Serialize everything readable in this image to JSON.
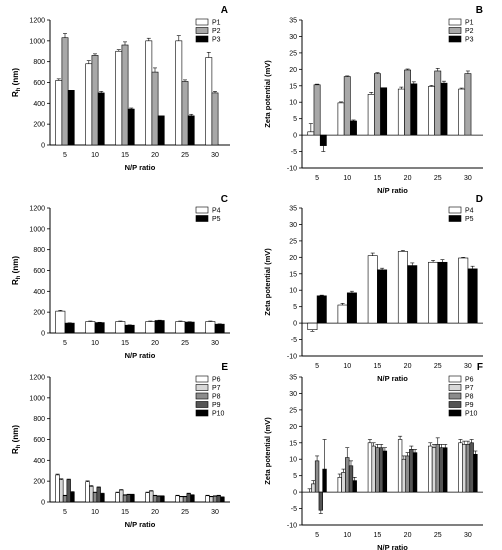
{
  "chart_data": [
    {
      "type": "bar",
      "panel_label": "A",
      "categories": [
        "5",
        "10",
        "15",
        "20",
        "25",
        "30"
      ],
      "series": [
        {
          "name": "P1",
          "values": [
            620,
            780,
            900,
            1000,
            1000,
            840
          ],
          "errors": [
            15,
            30,
            15,
            25,
            50,
            50
          ]
        },
        {
          "name": "P2",
          "values": [
            1030,
            860,
            960,
            700,
            610,
            500
          ],
          "errors": [
            40,
            15,
            30,
            40,
            15,
            15
          ]
        },
        {
          "name": "P3",
          "values": [
            525,
            500,
            345,
            280,
            280,
            0
          ],
          "errors": [
            0,
            15,
            10,
            0,
            15,
            0
          ]
        }
      ],
      "xlabel": "N/P ratio",
      "ylabel": "Rh (nm)",
      "ylim": [
        0,
        1200
      ],
      "yticks": [
        0,
        200,
        400,
        600,
        800,
        1000,
        1200
      ]
    },
    {
      "type": "bar",
      "panel_label": "B",
      "categories": [
        "5",
        "10",
        "15",
        "20",
        "25",
        "30"
      ],
      "series": [
        {
          "name": "P1",
          "values": [
            1,
            9.8,
            12.4,
            14,
            14.8,
            14
          ],
          "errors": [
            2.5,
            0.3,
            0.6,
            0.6,
            0.3,
            0.3
          ]
        },
        {
          "name": "P2",
          "values": [
            15.3,
            17.8,
            18.7,
            19.8,
            19.5,
            18.7
          ],
          "errors": [
            0.2,
            0.2,
            0.3,
            0.3,
            0.8,
            0.8
          ]
        },
        {
          "name": "P3",
          "values": [
            -3.2,
            4.3,
            14.4,
            15.6,
            15.8,
            0
          ],
          "errors": [
            1.8,
            0.3,
            0,
            0.6,
            0.6,
            0
          ]
        }
      ],
      "xlabel": "N/P ratio",
      "ylabel": "Zeta potential (mV)",
      "ylim": [
        -10,
        35
      ],
      "yticks": [
        -10,
        -5,
        0,
        5,
        10,
        15,
        20,
        25,
        30,
        35
      ]
    },
    {
      "type": "bar",
      "panel_label": "C",
      "categories": [
        "5",
        "10",
        "15",
        "20",
        "25",
        "30"
      ],
      "series": [
        {
          "name": "P4",
          "values": [
            210,
            110,
            110,
            110,
            110,
            110
          ],
          "errors": [
            8,
            5,
            5,
            5,
            5,
            5
          ]
        },
        {
          "name": "P5",
          "values": [
            95,
            100,
            75,
            120,
            105,
            85
          ],
          "errors": [
            3,
            3,
            3,
            3,
            3,
            3
          ]
        }
      ],
      "xlabel": "N/P ratio",
      "ylabel": "Rh (nm)",
      "ylim": [
        0,
        1200
      ],
      "yticks": [
        0,
        200,
        400,
        600,
        800,
        1000,
        1200
      ]
    },
    {
      "type": "bar",
      "panel_label": "D",
      "categories": [
        "5",
        "10",
        "15",
        "20",
        "25",
        "30"
      ],
      "series": [
        {
          "name": "P4",
          "values": [
            -2,
            5.5,
            20.5,
            21.8,
            18.5,
            19.8
          ],
          "errors": [
            0.5,
            0.5,
            0.8,
            0.3,
            0.6,
            0.2
          ]
        },
        {
          "name": "P5",
          "values": [
            8.3,
            9.2,
            16.2,
            17.5,
            18.5,
            16.5
          ],
          "errors": [
            0.2,
            0.5,
            0.5,
            0.8,
            0.8,
            0.8
          ]
        }
      ],
      "xlabel": "N/P ratio",
      "ylabel": "Zeta potential (mV)",
      "ylim": [
        -10,
        35
      ],
      "yticks": [
        -10,
        -5,
        0,
        5,
        10,
        15,
        20,
        25,
        30,
        35
      ]
    },
    {
      "type": "bar",
      "panel_label": "E",
      "categories": [
        "5",
        "10",
        "15",
        "20",
        "25",
        "30"
      ],
      "series": [
        {
          "name": "P6",
          "values": [
            260,
            195,
            90,
            90,
            60,
            60
          ],
          "errors": [
            8,
            8,
            5,
            5,
            5,
            5
          ]
        },
        {
          "name": "P7",
          "values": [
            215,
            150,
            115,
            105,
            50,
            50
          ],
          "errors": [
            8,
            8,
            5,
            5,
            5,
            5
          ]
        },
        {
          "name": "P8",
          "values": [
            60,
            90,
            65,
            60,
            50,
            55
          ],
          "errors": [
            5,
            5,
            5,
            5,
            5,
            5
          ]
        },
        {
          "name": "P9",
          "values": [
            215,
            140,
            70,
            55,
            80,
            60
          ],
          "errors": [
            5,
            5,
            5,
            5,
            5,
            5
          ]
        },
        {
          "name": "P10",
          "values": [
            95,
            80,
            70,
            55,
            65,
            45
          ],
          "errors": [
            5,
            5,
            5,
            5,
            5,
            5
          ]
        }
      ],
      "xlabel": "N/P ratio",
      "ylabel": "Rh (nm)",
      "ylim": [
        0,
        1200
      ],
      "yticks": [
        0,
        200,
        400,
        600,
        800,
        1000,
        1200
      ]
    },
    {
      "type": "bar",
      "panel_label": "F",
      "categories": [
        "5",
        "10",
        "15",
        "20",
        "25",
        "30"
      ],
      "series": [
        {
          "name": "P6",
          "values": [
            0,
            4.5,
            15,
            16,
            14,
            15
          ],
          "errors": [
            1,
            1,
            1,
            1,
            1,
            1
          ]
        },
        {
          "name": "P7",
          "values": [
            2.5,
            6,
            14,
            10,
            13.5,
            14.5
          ],
          "errors": [
            1,
            1,
            1,
            1,
            1,
            1
          ]
        },
        {
          "name": "P8",
          "values": [
            9.5,
            10.5,
            13.5,
            11,
            14.5,
            14.5
          ],
          "errors": [
            1.5,
            3,
            1,
            1,
            2,
            1
          ]
        },
        {
          "name": "P9",
          "values": [
            -5.5,
            8,
            13.5,
            13,
            13.5,
            15
          ],
          "errors": [
            1,
            1.5,
            1,
            1,
            1,
            1
          ]
        },
        {
          "name": "P10",
          "values": [
            7,
            3.5,
            12.5,
            12,
            13.5,
            11.5
          ],
          "errors": [
            9,
            1,
            1,
            1,
            1,
            1
          ]
        }
      ],
      "xlabel": "N/P ratio",
      "ylabel": "Zeta potential (mV)",
      "ylim": [
        -10,
        35
      ],
      "yticks": [
        -10,
        -5,
        0,
        5,
        10,
        15,
        20,
        25,
        30,
        35
      ]
    }
  ],
  "styles": {
    "P1": "#ffffff",
    "P2": "#a8a8a8",
    "P3": "#000000",
    "P4": "#ffffff",
    "P5": "#000000",
    "P6": "#ffffff",
    "P7": "#d8d8d8",
    "P8": "#8c8c8c",
    "P9": "#555555",
    "P10": "#000000"
  }
}
